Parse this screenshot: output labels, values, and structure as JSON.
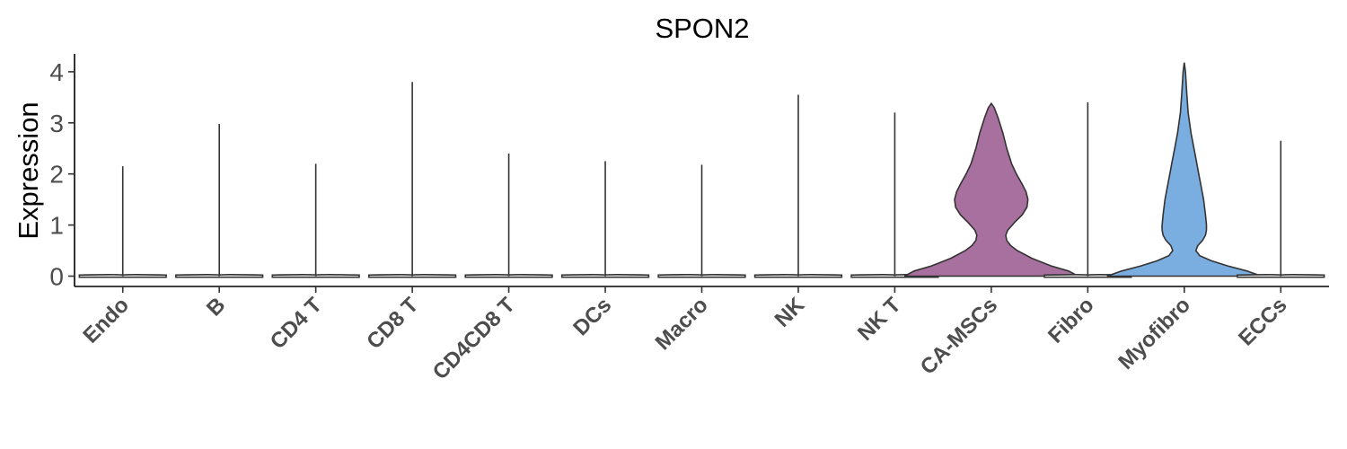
{
  "chart_data": {
    "type": "violin",
    "title": "SPON2",
    "ylabel": "Expression",
    "xlabel": "",
    "ylim": [
      -0.2,
      4.3
    ],
    "yticks": [
      0,
      1,
      2,
      3,
      4
    ],
    "ytick_labels": [
      "0",
      "1",
      "2",
      "3",
      "4"
    ],
    "grid": false,
    "legend": "none",
    "categories": [
      "Endo",
      "B",
      "CD4 T",
      "CD8 T",
      "CD4CD8 T",
      "DCs",
      "Macro",
      "NK",
      "NK T",
      "CA-MSCs",
      "Fibro",
      "Myofibro",
      "ECCs"
    ],
    "max_values": [
      2.15,
      2.98,
      2.2,
      3.8,
      2.4,
      2.25,
      2.18,
      3.55,
      3.2,
      3.38,
      3.4,
      4.18,
      2.65
    ],
    "fill_colors": [
      "#ffffff",
      "#ffffff",
      "#ffffff",
      "#ffffff",
      "#ffffff",
      "#ffffff",
      "#ffffff",
      "#ffffff",
      "#ffffff",
      "#a8709e",
      "#ffffff",
      "#7aade0",
      "#ffffff"
    ],
    "density_profiles": [
      {
        "category": "CA-MSCs",
        "y": [
          0,
          0.1,
          0.2,
          0.35,
          0.5,
          0.6,
          0.7,
          0.8,
          0.9,
          1.05,
          1.2,
          1.35,
          1.5,
          1.65,
          1.8,
          2.0,
          2.2,
          2.5,
          2.8,
          3.1,
          3.3,
          3.38
        ],
        "half_width": [
          0.9,
          0.8,
          0.62,
          0.42,
          0.27,
          0.2,
          0.16,
          0.15,
          0.17,
          0.24,
          0.32,
          0.37,
          0.38,
          0.36,
          0.32,
          0.26,
          0.21,
          0.16,
          0.12,
          0.07,
          0.03,
          0
        ]
      },
      {
        "category": "Myofibro",
        "y": [
          0,
          0.1,
          0.2,
          0.3,
          0.4,
          0.5,
          0.6,
          0.7,
          0.8,
          0.9,
          1.0,
          1.2,
          1.5,
          1.8,
          2.0,
          2.2,
          2.5,
          2.8,
          3.2,
          3.6,
          4.0,
          4.18
        ],
        "half_width": [
          0.8,
          0.65,
          0.45,
          0.28,
          0.16,
          0.12,
          0.14,
          0.19,
          0.22,
          0.23,
          0.23,
          0.22,
          0.2,
          0.17,
          0.15,
          0.13,
          0.1,
          0.07,
          0.04,
          0.025,
          0.012,
          0
        ]
      }
    ]
  }
}
